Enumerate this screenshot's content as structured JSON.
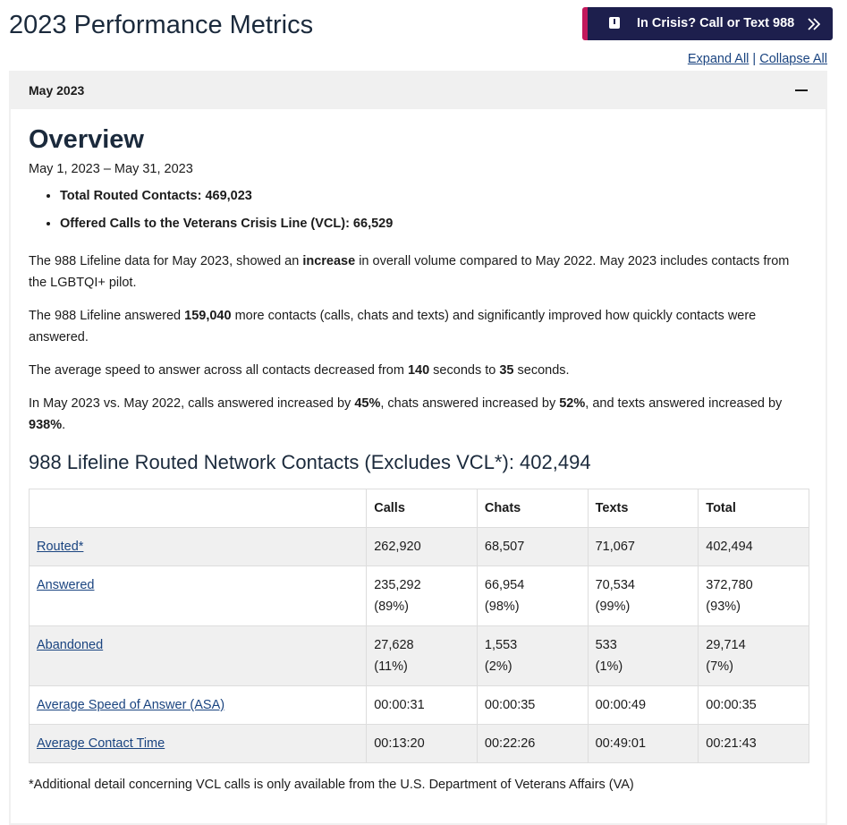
{
  "header": {
    "title": "2023 Performance Metrics",
    "crisis_button": "In Crisis? Call or Text 988",
    "expand_all": "Expand All",
    "separator": "|",
    "collapse_all": "Collapse All"
  },
  "accordion": {
    "label": "May 2023"
  },
  "overview": {
    "heading": "Overview",
    "date_range": "May 1, 2023 – May 31, 2023",
    "bullets": [
      "Total Routed Contacts: 469,023",
      "Offered Calls to the Veterans Crisis Line (VCL): 66,529"
    ],
    "paragraphs": [
      [
        "The 988 Lifeline data for May 2023, showed an ",
        "increase",
        " in overall volume compared to May 2022. May 2023 includes contacts from the LGBTQI+ pilot."
      ],
      [
        "The 988 Lifeline answered ",
        "159,040",
        " more contacts (calls, chats and texts) and significantly improved how quickly contacts were answered."
      ],
      [
        "The average speed to answer across all contacts decreased from ",
        "140",
        " seconds to ",
        "35",
        " seconds."
      ],
      [
        "In May 2023 vs. May 2022, calls answered increased by ",
        "45%",
        ", chats answered increased by ",
        "52%",
        ", and texts answered increased by ",
        "938%",
        "."
      ]
    ]
  },
  "table": {
    "heading": "988 Lifeline Routed Network Contacts (Excludes VCL*): 402,494",
    "columns": [
      "Calls",
      "Chats",
      "Texts",
      "Total"
    ],
    "rows": [
      {
        "label": "Routed*",
        "cells": [
          [
            "262,920"
          ],
          [
            "68,507"
          ],
          [
            "71,067"
          ],
          [
            "402,494"
          ]
        ]
      },
      {
        "label": "Answered",
        "cells": [
          [
            "235,292",
            "(89%)"
          ],
          [
            "66,954",
            "(98%)"
          ],
          [
            "70,534",
            "(99%)"
          ],
          [
            "372,780",
            "(93%)"
          ]
        ]
      },
      {
        "label": "Abandoned",
        "cells": [
          [
            "27,628",
            "(11%)"
          ],
          [
            "1,553",
            "(2%)"
          ],
          [
            "533",
            "(1%)"
          ],
          [
            "29,714",
            "(7%)"
          ]
        ]
      },
      {
        "label": "Average Speed of Answer (ASA)",
        "cells": [
          [
            "00:00:31"
          ],
          [
            "00:00:35"
          ],
          [
            "00:00:49"
          ],
          [
            "00:00:35"
          ]
        ]
      },
      {
        "label": "Average Contact Time",
        "cells": [
          [
            "00:13:20"
          ],
          [
            "00:22:26"
          ],
          [
            "00:49:01"
          ],
          [
            "00:21:43"
          ]
        ]
      }
    ]
  },
  "footnote": "*Additional detail concerning VCL calls is only available from the U.S. Department of Veterans Affairs (VA)"
}
